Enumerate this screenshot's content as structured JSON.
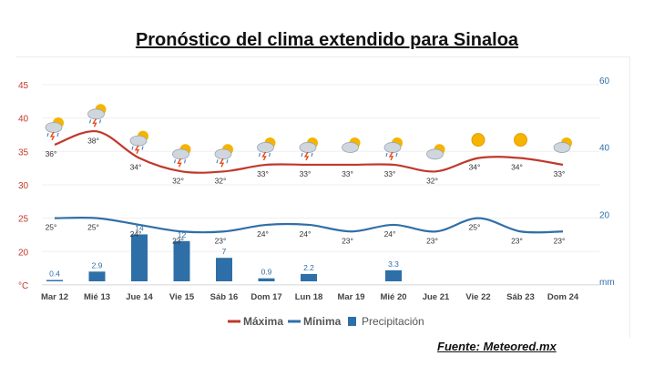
{
  "title": "Pronóstico del clima extendido para Sinaloa",
  "source": "Fuente: Meteored.mx",
  "chart_data": {
    "type": "line",
    "categories": [
      "Mar 12",
      "Mié 13",
      "Jue 14",
      "Vie 15",
      "Sáb 16",
      "Dom 17",
      "Lun 18",
      "Mar 19",
      "Mié 20",
      "Jue 21",
      "Vie 22",
      "Sáb 23",
      "Dom 24"
    ],
    "series": [
      {
        "name": "Máxima",
        "type": "line",
        "axis": "left",
        "color": "#c0392b",
        "values": [
          36,
          38,
          34,
          32,
          32,
          33,
          33,
          33,
          33,
          32,
          34,
          34,
          33
        ],
        "labels": [
          "36°",
          "38°",
          "34°",
          "32°",
          "32°",
          "33°",
          "33°",
          "33°",
          "33°",
          "32°",
          "34°",
          "34°",
          "33°"
        ]
      },
      {
        "name": "Mínima",
        "type": "line",
        "axis": "left",
        "color": "#2f6fa8",
        "values": [
          25,
          25,
          24,
          23,
          23,
          24,
          24,
          23,
          24,
          23,
          25,
          23,
          23
        ],
        "labels": [
          "25°",
          "25°",
          "24°",
          "23°",
          "23°",
          "24°",
          "24°",
          "23°",
          "24°",
          "23°",
          "25°",
          "23°",
          "23°"
        ]
      },
      {
        "name": "Precipitación",
        "type": "bar",
        "axis": "right",
        "color": "#2f6fa8",
        "values": [
          0.4,
          2.9,
          14,
          12,
          7,
          0.9,
          2.2,
          0,
          3.3,
          0,
          0,
          0,
          0
        ],
        "labels": [
          "0.4",
          "2.9",
          "14",
          "12",
          "7",
          "0.9",
          "2.2",
          "",
          "3.3",
          "",
          "",
          "",
          ""
        ]
      }
    ],
    "y_left": {
      "unit": "°C",
      "ticks": [
        45,
        40,
        35,
        30,
        25,
        20
      ],
      "ylim": [
        15,
        45
      ]
    },
    "y_right": {
      "unit": "mm",
      "ticks": [
        60,
        40,
        20
      ],
      "ylim": [
        0,
        60
      ]
    },
    "icons": [
      "storm-sun-icon",
      "storm-sun-icon",
      "storm-sun-icon",
      "storm-sun-icon",
      "storm-sun-icon",
      "storm-sun-icon",
      "storm-sun-icon",
      "partly-cloudy-icon",
      "storm-sun-icon",
      "partly-cloudy-icon",
      "sun-icon",
      "sun-icon",
      "partly-cloudy-icon"
    ],
    "legend": [
      "Máxima",
      "Mínima",
      "Precipitación"
    ],
    "legend_position": "bottom",
    "grid": true
  }
}
